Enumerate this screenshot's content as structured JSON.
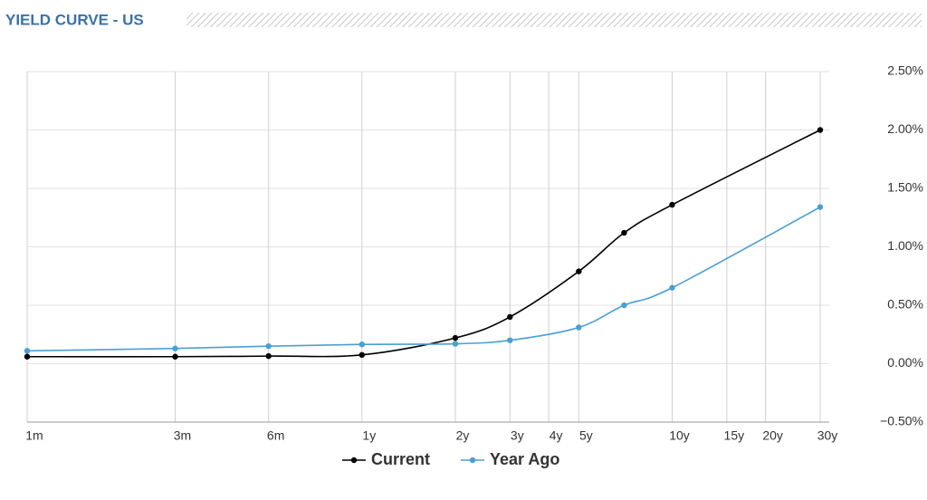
{
  "chart_data": {
    "type": "line",
    "title": "YIELD CURVE - US",
    "x": [
      0.08333,
      0.25,
      0.5,
      1,
      2,
      3,
      5,
      7,
      10,
      30
    ],
    "xlim": [
      0.08333,
      30
    ],
    "xscale": "log",
    "xticks": [
      {
        "value": 0.08333,
        "label": "1m"
      },
      {
        "value": 0.25,
        "label": "3m"
      },
      {
        "value": 0.5,
        "label": "6m"
      },
      {
        "value": 1,
        "label": "1y"
      },
      {
        "value": 2,
        "label": "2y"
      },
      {
        "value": 3,
        "label": "3y"
      },
      {
        "value": 4,
        "label": "4y"
      },
      {
        "value": 5,
        "label": "5y"
      },
      {
        "value": 10,
        "label": "10y"
      },
      {
        "value": 15,
        "label": "15y"
      },
      {
        "value": 20,
        "label": "20y"
      },
      {
        "value": 30,
        "label": "30y"
      }
    ],
    "ylim": [
      -0.5,
      2.5
    ],
    "yticks": [
      {
        "value": -0.5,
        "label": "−0.50%"
      },
      {
        "value": 0,
        "label": "0.00%"
      },
      {
        "value": 0.5,
        "label": "0.50%"
      },
      {
        "value": 1,
        "label": "1.00%"
      },
      {
        "value": 1.5,
        "label": "1.50%"
      },
      {
        "value": 2,
        "label": "2.00%"
      },
      {
        "value": 2.5,
        "label": "2.50%"
      }
    ],
    "grid": true,
    "legend": "bottom",
    "series": [
      {
        "name": "Current",
        "color": "#000000",
        "values": [
          0.06,
          0.06,
          0.065,
          0.075,
          0.22,
          0.4,
          0.79,
          1.12,
          1.36,
          2.0
        ]
      },
      {
        "name": "Year Ago",
        "color": "#4a9fd5",
        "values": [
          0.11,
          0.13,
          0.15,
          0.165,
          0.17,
          0.2,
          0.31,
          0.5,
          0.65,
          1.34
        ]
      }
    ]
  }
}
